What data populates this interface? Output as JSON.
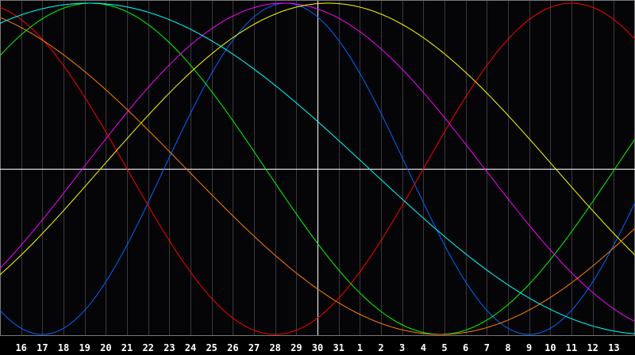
{
  "chart_data": {
    "type": "line",
    "x_unit": "day",
    "x_range": [
      0,
      30
    ],
    "ylim": [
      -1,
      1
    ],
    "grid": true,
    "today_marker_index": 15,
    "x_tick_labels": [
      "16",
      "17",
      "18",
      "19",
      "20",
      "21",
      "22",
      "23",
      "24",
      "25",
      "26",
      "27",
      "28",
      "29",
      "30",
      "31",
      "1",
      "2",
      "3",
      "4",
      "5",
      "6",
      "7",
      "8",
      "9",
      "10",
      "11",
      "12",
      "13"
    ],
    "background": "#050508",
    "grid_color": "#3a3a3e",
    "axis_color": "#ffffff",
    "series": [
      {
        "color": "#0066ff",
        "period_days": 23,
        "peak_day": 13.5
      },
      {
        "color": "#ff0000",
        "period_days": 28,
        "peak_day": 27.0
      },
      {
        "color": "#00ff00",
        "period_days": 33,
        "peak_day": 4.3
      },
      {
        "color": "#ff00ff",
        "period_days": 38,
        "peak_day": 13.4
      },
      {
        "color": "#ffff00",
        "period_days": 43,
        "peak_day": 15.5
      },
      {
        "color": "#ff8000",
        "period_days": 48,
        "peak_day": -3.2
      },
      {
        "color": "#00ffff",
        "period_days": 53,
        "peak_day": 4.2
      }
    ]
  }
}
